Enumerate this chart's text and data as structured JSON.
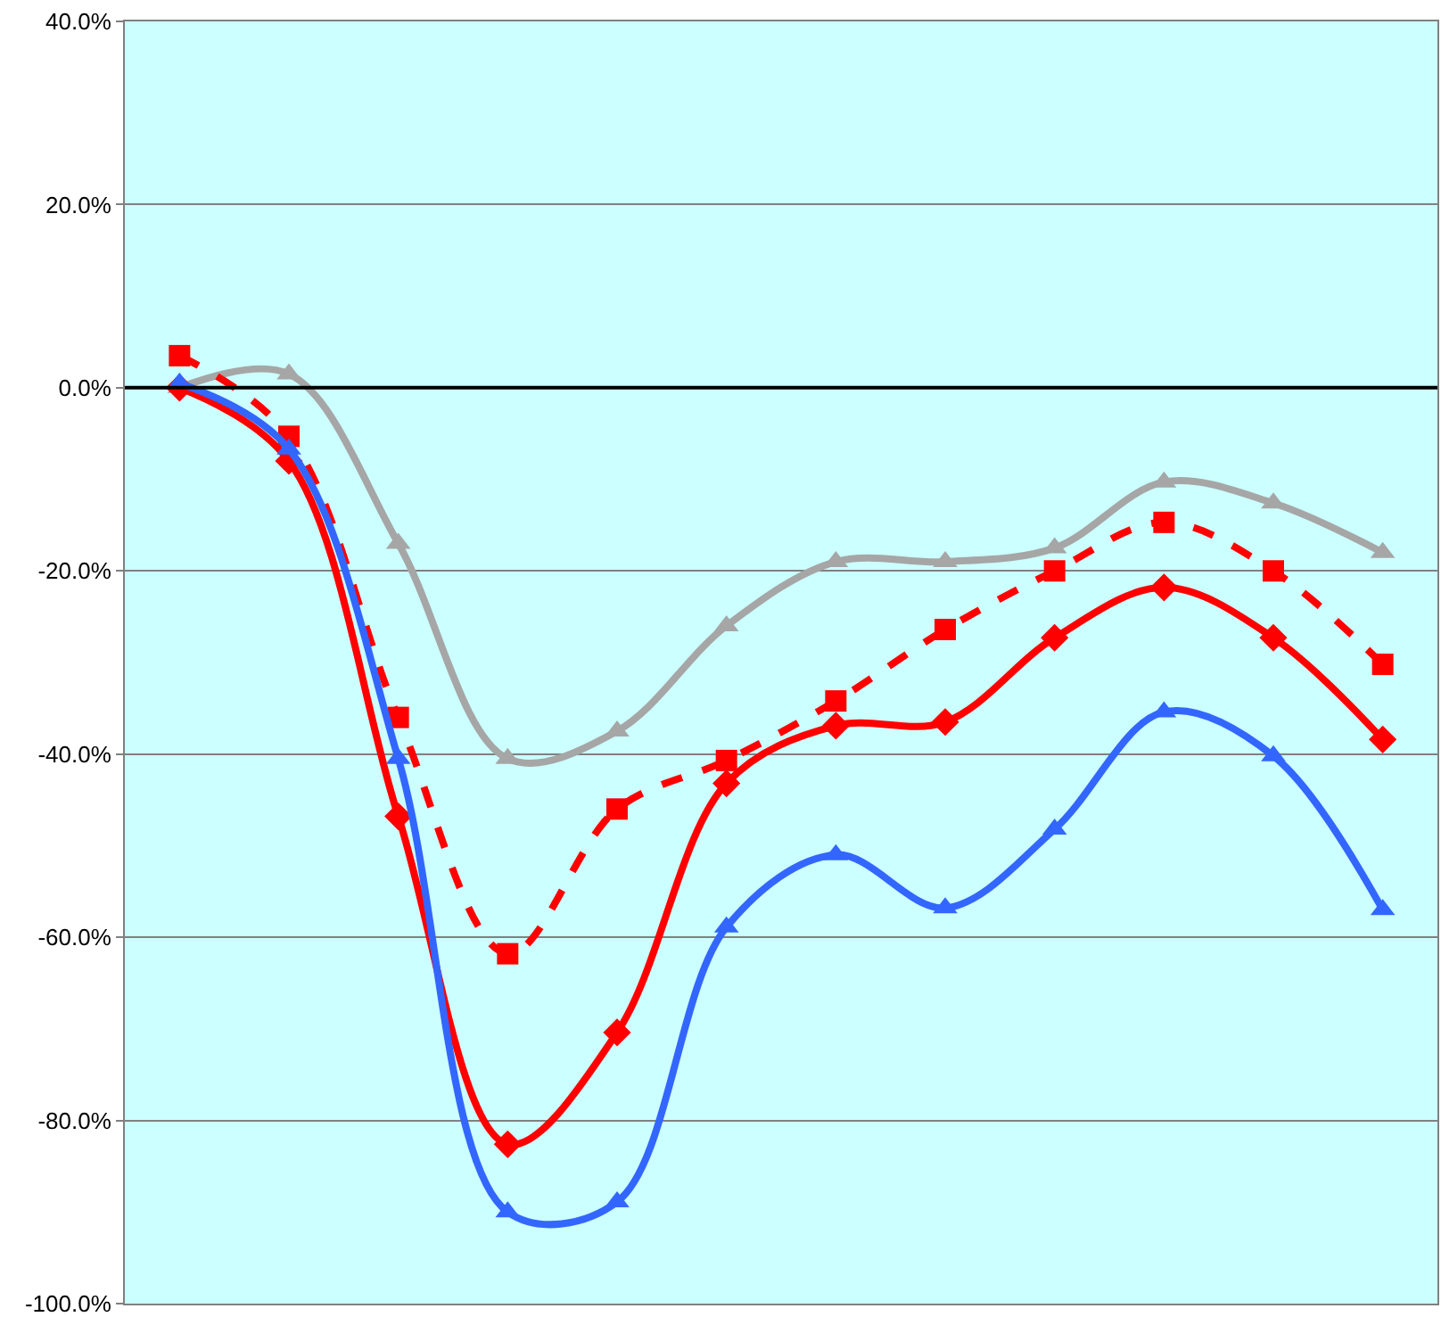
{
  "chart_data": {
    "type": "line",
    "categories": [
      null,
      null,
      null,
      null,
      null,
      null,
      null,
      null,
      null,
      null,
      null,
      null
    ],
    "series": [
      {
        "color": "#a6a6a6",
        "marker": "triangle",
        "line_style": "solid",
        "values": [
          0,
          1.5,
          -17,
          -40.5,
          -37.5,
          -26,
          -19,
          -19,
          -17.5,
          -10.3,
          -12.6,
          -18
        ]
      },
      {
        "color": "#ff0000",
        "marker": "square",
        "line_style": "dashed",
        "values": [
          3.5,
          -5.3,
          -36,
          -61.8,
          -46,
          -40.7,
          -34.2,
          -26.4,
          -20,
          -14.7,
          -20,
          -30.2
        ]
      },
      {
        "color": "#ff0000",
        "marker": "diamond",
        "line_style": "solid",
        "values": [
          0,
          -8,
          -46.8,
          -82.6,
          -70.4,
          -43.2,
          -36.9,
          -36.5,
          -27.3,
          -21.8,
          -27.3,
          -38.4
        ]
      },
      {
        "color": "#3366ff",
        "marker": "triangle",
        "line_style": "solid",
        "values": [
          0.5,
          -6.7,
          -40.5,
          -90,
          -88.9,
          -58.9,
          -51,
          -56.8,
          -48.2,
          -35.4,
          -40.2,
          -57
        ]
      }
    ],
    "ylim": [
      -100,
      40
    ],
    "yticks": [
      {
        "value": -100,
        "label": "-100.0%"
      },
      {
        "value": -80,
        "label": "-80.0%"
      },
      {
        "value": -60,
        "label": "-60.0%"
      },
      {
        "value": -40,
        "label": "-40.0%"
      },
      {
        "value": -20,
        "label": "-20.0%"
      },
      {
        "value": 0,
        "label": "0.0%"
      },
      {
        "value": 20,
        "label": "20.0%"
      },
      {
        "value": 40,
        "label": "40.0%"
      }
    ],
    "grid": "y",
    "tick_labels": "y",
    "ref_lines": [
      {
        "axis": "y",
        "value": 0,
        "color": "#000000"
      }
    ]
  }
}
